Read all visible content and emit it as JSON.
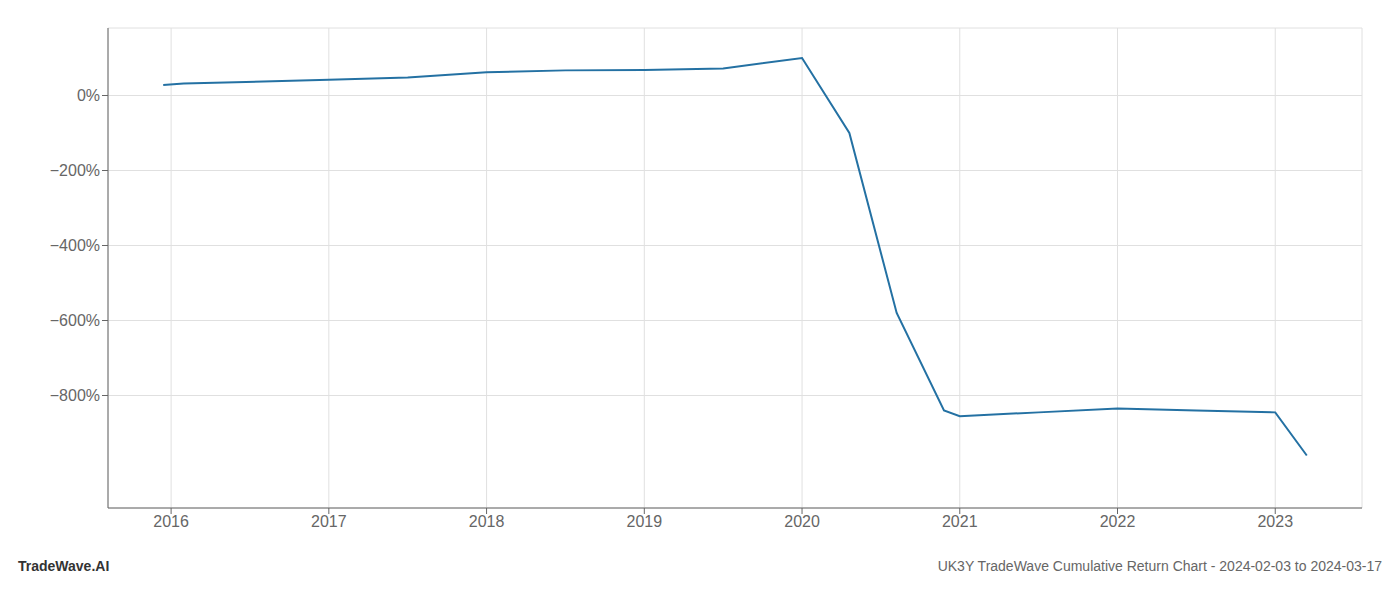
{
  "chart_data": {
    "type": "line",
    "x": [
      2015.95,
      2016.08,
      2017.0,
      2017.5,
      2018.0,
      2018.5,
      2019.0,
      2019.5,
      2020.0,
      2020.3,
      2020.6,
      2020.9,
      2021.0,
      2021.5,
      2022.0,
      2022.5,
      2023.0,
      2023.2
    ],
    "values": [
      28,
      32,
      42,
      48,
      62,
      67,
      68,
      72,
      100,
      -100,
      -580,
      -840,
      -855,
      -845,
      -835,
      -840,
      -845,
      -960
    ],
    "color": "#2471a3",
    "xlim": [
      2015.6,
      2023.55
    ],
    "ylim": [
      -1100,
      180
    ],
    "xticks": [
      2016,
      2017,
      2018,
      2019,
      2020,
      2021,
      2022,
      2023
    ],
    "yticks": [
      {
        "value": 0,
        "label": "0%"
      },
      {
        "value": -200,
        "label": "−200%"
      },
      {
        "value": -400,
        "label": "−400%"
      },
      {
        "value": -600,
        "label": "−600%"
      },
      {
        "value": -800,
        "label": "−800%"
      }
    ],
    "grid": true,
    "annotations": [
      "TradeWave.AI",
      "UK3Y TradeWave Cumulative Return Chart - 2024-02-03 to 2024-03-17"
    ]
  }
}
